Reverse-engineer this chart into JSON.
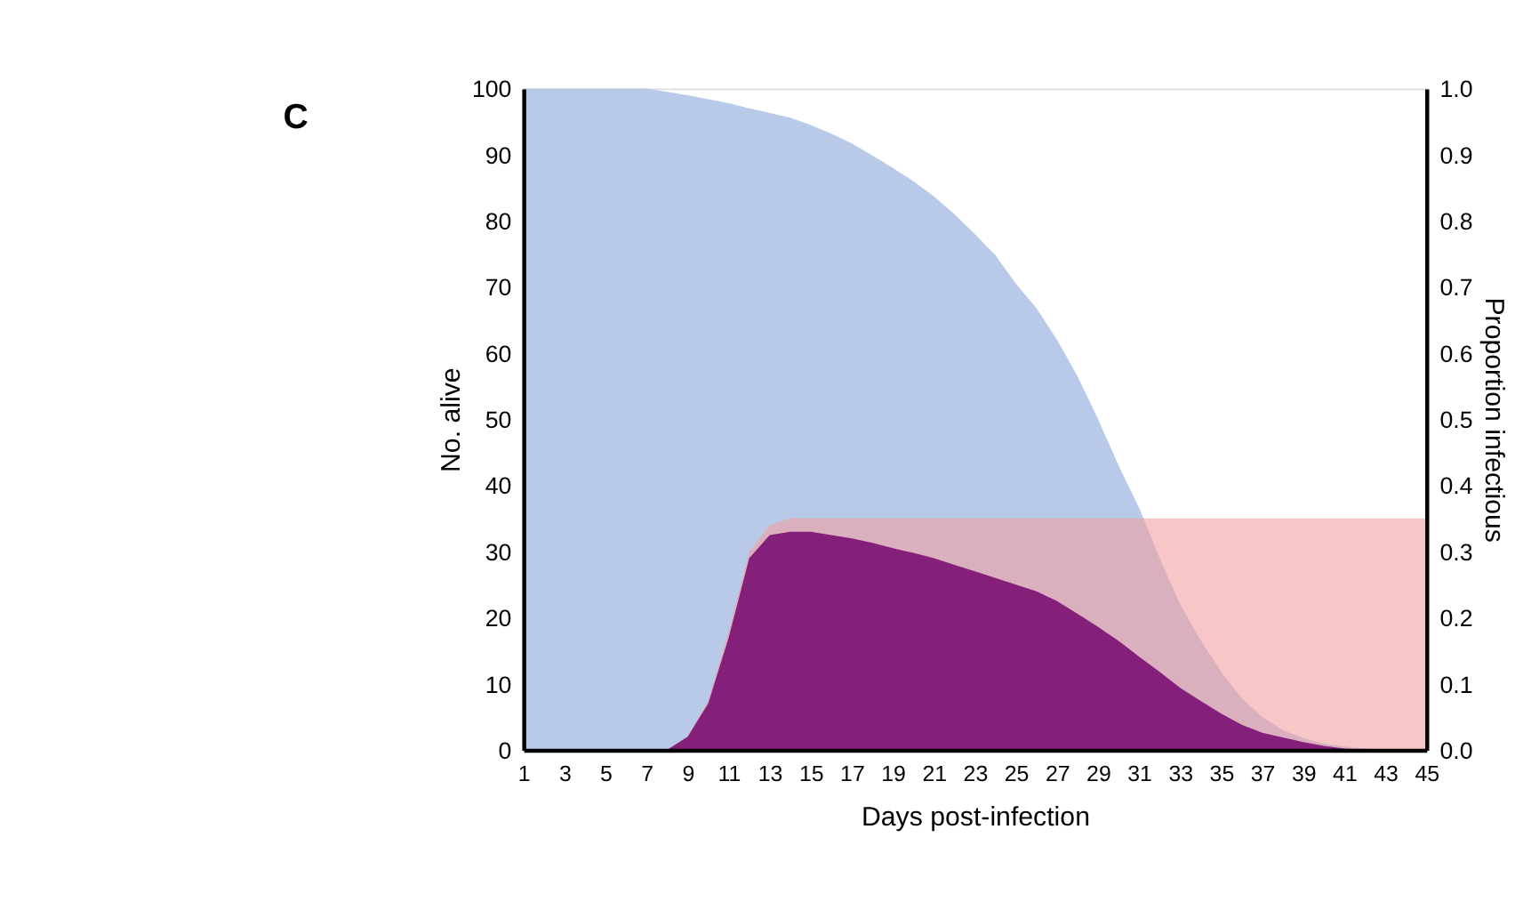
{
  "chart_data": {
    "type": "area",
    "xlabel": "Days post-infection",
    "ylabel": "No. alive",
    "y2label": "Proportion infectious",
    "annotations": [
      "C"
    ],
    "x": [
      1,
      2,
      3,
      4,
      5,
      6,
      7,
      8,
      9,
      10,
      11,
      12,
      13,
      14,
      15,
      16,
      17,
      18,
      19,
      20,
      21,
      22,
      23,
      24,
      25,
      26,
      27,
      28,
      29,
      30,
      31,
      32,
      33,
      34,
      35,
      36,
      37,
      38,
      39,
      40,
      41,
      42,
      43,
      44,
      45
    ],
    "xlim": [
      1,
      45
    ],
    "xticks": [
      1,
      3,
      5,
      7,
      9,
      11,
      13,
      15,
      17,
      19,
      21,
      23,
      25,
      27,
      29,
      31,
      33,
      35,
      37,
      39,
      41,
      43,
      45
    ],
    "ylim": [
      0,
      100
    ],
    "yticks": [
      0,
      10,
      20,
      30,
      40,
      50,
      60,
      70,
      80,
      90,
      100
    ],
    "y2lim": [
      0,
      1
    ],
    "y2ticks": [
      {
        "value": 0,
        "label": "0.0"
      },
      0.1,
      0.2,
      0.3,
      0.4,
      0.5,
      0.6,
      0.7,
      0.8,
      0.9,
      {
        "value": 1,
        "label": "1.0"
      }
    ],
    "grid": false,
    "legend": false,
    "series": [
      {
        "color": "#b9c9e8",
        "values": [
          100,
          100,
          100,
          100,
          100,
          100,
          100,
          99.5,
          99,
          98.4,
          97.8,
          97,
          96.3,
          95.6,
          94.5,
          93.2,
          91.7,
          89.9,
          88,
          86,
          83.7,
          81,
          78,
          74.8,
          70.5,
          66.8,
          62,
          56.5,
          50,
          43,
          36.6,
          29,
          22,
          16.6,
          11.8,
          7.8,
          5,
          3,
          1.8,
          1,
          0.5,
          0.2,
          0,
          0,
          0
        ]
      },
      {
        "color": "#f2a0a2",
        "axis": "y2",
        "values": [
          0,
          0,
          0,
          0,
          0,
          0,
          0,
          0,
          0.02,
          0.075,
          0.18,
          0.3,
          0.34,
          0.35,
          0.35,
          0.35,
          0.35,
          0.35,
          0.35,
          0.35,
          0.35,
          0.35,
          0.35,
          0.35,
          0.35,
          0.35,
          0.35,
          0.35,
          0.35,
          0.35,
          0.35,
          0.35,
          0.35,
          0.35,
          0.35,
          0.35,
          0.35,
          0.35,
          0.35,
          0.35,
          0.35,
          0.35,
          0.35,
          0.35,
          0.35
        ]
      },
      {
        "color": "#84207a",
        "axis": "y2",
        "values": [
          0,
          0,
          0,
          0,
          0,
          0,
          0,
          0,
          0.02,
          0.07,
          0.17,
          0.29,
          0.325,
          0.33,
          0.33,
          0.325,
          0.32,
          0.313,
          0.305,
          0.298,
          0.29,
          0.28,
          0.27,
          0.26,
          0.25,
          0.24,
          0.225,
          0.206,
          0.186,
          0.165,
          0.141,
          0.118,
          0.094,
          0.074,
          0.055,
          0.038,
          0.026,
          0.019,
          0.012,
          0.006,
          0.002,
          0,
          0,
          0,
          0
        ]
      }
    ]
  }
}
